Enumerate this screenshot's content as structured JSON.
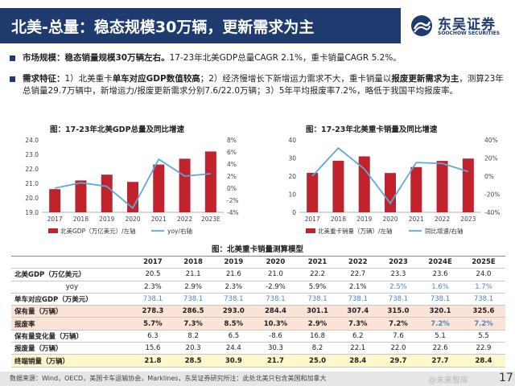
{
  "header": {
    "title": "北美-总量：稳态规模30万辆，更新需求为主",
    "logo_cn": "东吴证券",
    "logo_en": "SOOCHOW SECURITIES",
    "bar_color": "#1f3a6e"
  },
  "bullets": [
    {
      "label": "市场规模：稳态销量规模30万辆左右。",
      "text": "17-23年北美GDP总量CAGR 2.1%，重卡销量CAGR 5.2%。"
    },
    {
      "label": "需求特征：",
      "t1": "1）北美重卡",
      "b1": "单车对应GDP数值较高",
      "t2": "；2）经济慢增长下新增运力需求不大，重卡销量以",
      "b2": "报废更新需求为主",
      "t3": "，测算23年总销量29.7万辆中，新增运力/报废更新需求分别7.6/22.0万辆；3）5年平均报废率7.2%，略低于我国平均报废率。"
    }
  ],
  "chart_data": [
    {
      "type": "bar",
      "title": "图：17-23年北美GDP总量及同比增速",
      "categories": [
        "2017",
        "2018",
        "2019",
        "2020",
        "2021",
        "2022",
        "2023E"
      ],
      "series": [
        {
          "name": "北美GDP（万亿美元）/左轴",
          "type": "bar",
          "axis": "left",
          "values": [
            20.6,
            21.2,
            21.6,
            21.1,
            22.3,
            22.7,
            23.2
          ]
        },
        {
          "name": "yoy/右轴",
          "type": "line",
          "axis": "right",
          "values": [
            0.0,
            0.9,
            0.3,
            -3.3,
            4.8,
            2.0,
            2.4
          ]
        }
      ],
      "left_ticks": [
        "19.0",
        "20.0",
        "21.0",
        "22.0",
        "23.0",
        "24.0"
      ],
      "ylim": [
        19,
        24
      ],
      "right_ticks": [
        "-4%",
        "-2%",
        "0%",
        "2%",
        "4%",
        "6%",
        "8%"
      ],
      "y2lim": [
        -4,
        8
      ],
      "colors": {
        "bar": "#c0232c",
        "line": "#5aaad8"
      }
    },
    {
      "type": "bar",
      "title": "图：17-23年北美重卡销量及同比增速",
      "categories": [
        "2017",
        "2018",
        "2019",
        "2020",
        "2021",
        "2022",
        "2023"
      ],
      "series": [
        {
          "name": "北美重卡销量（万辆）/左轴",
          "type": "bar",
          "axis": "left",
          "values": [
            21.8,
            28.5,
            30.9,
            21.7,
            25.0,
            28.4,
            29.7
          ]
        },
        {
          "name": "同比增速/右轴",
          "type": "line",
          "axis": "right",
          "values": [
            0,
            31,
            8,
            -30,
            15,
            14,
            5
          ]
        }
      ],
      "left_ticks": [
        "0",
        "10",
        "20",
        "30",
        "40"
      ],
      "ylim": [
        0,
        40
      ],
      "right_ticks": [
        "-40%",
        "-20%",
        "0%",
        "20%",
        "40%"
      ],
      "y2lim": [
        -40,
        40
      ],
      "colors": {
        "bar": "#c0232c",
        "line": "#5aaad8"
      }
    }
  ],
  "table": {
    "title": "图：北美重卡销量测算模型",
    "headers": [
      "",
      "2017",
      "2018",
      "2019",
      "2020",
      "2021",
      "2022",
      "2023",
      "2024E",
      "2025E"
    ],
    "rows": [
      {
        "cells": [
          "北美GDP（万亿美元）",
          "20.5",
          "21.1",
          "21.6",
          "21.0",
          "22.2",
          "22.7",
          "23.3",
          "23.6",
          "24.0"
        ],
        "style": "plain"
      },
      {
        "cells": [
          "yoy",
          "2.3%",
          "2.9%",
          "2.3%",
          "-2.9%",
          "5.9%",
          "2.1%",
          "2.5%",
          "1.6%",
          "1.7%"
        ],
        "style": "yoy"
      },
      {
        "cells": [
          "单车对应GDP（万美元）",
          "738.1",
          "738.1",
          "738.1",
          "738.1",
          "738.1",
          "738.1",
          "738.1",
          "738.1",
          "738.1"
        ],
        "style": "blue"
      },
      {
        "cells": [
          "保有量（万辆）",
          "278.3",
          "286.5",
          "293.0",
          "284.4",
          "301.1",
          "307.4",
          "315.0",
          "320.1",
          "325.6"
        ],
        "style": "hl"
      },
      {
        "cells": [
          "报废率",
          "5.7%",
          "7.3%",
          "8.5%",
          "10.3%",
          "2.9%",
          "7.3%",
          "7.2%",
          "7.2%",
          "7.2%"
        ],
        "style": "hl"
      },
      {
        "cells": [
          "保有量变化量（万辆）",
          "6.3",
          "8.2",
          "6.5",
          "-8.6",
          "16.8",
          "6.2",
          "7.6",
          "5.1",
          "5.5"
        ],
        "style": "plain"
      },
      {
        "cells": [
          "报废量（万辆）",
          "15.6",
          "20.3",
          "24.4",
          "30.3",
          "8.2",
          "22.1",
          "22.0",
          "22.6",
          "22.9"
        ],
        "style": "plain"
      },
      {
        "cells": [
          "终端销量（万辆）",
          "21.8",
          "28.5",
          "30.9",
          "21.7",
          "25.0",
          "28.4",
          "29.7",
          "27.7",
          "28.4"
        ],
        "style": "yellow"
      }
    ]
  },
  "footer": {
    "source": "数据来源：Wind，OECD，美国卡车运输协会，Marklines，东吴证券研究所注：此处北美只包含美国和加拿大",
    "watermark": "@未来智库",
    "page": "17"
  }
}
